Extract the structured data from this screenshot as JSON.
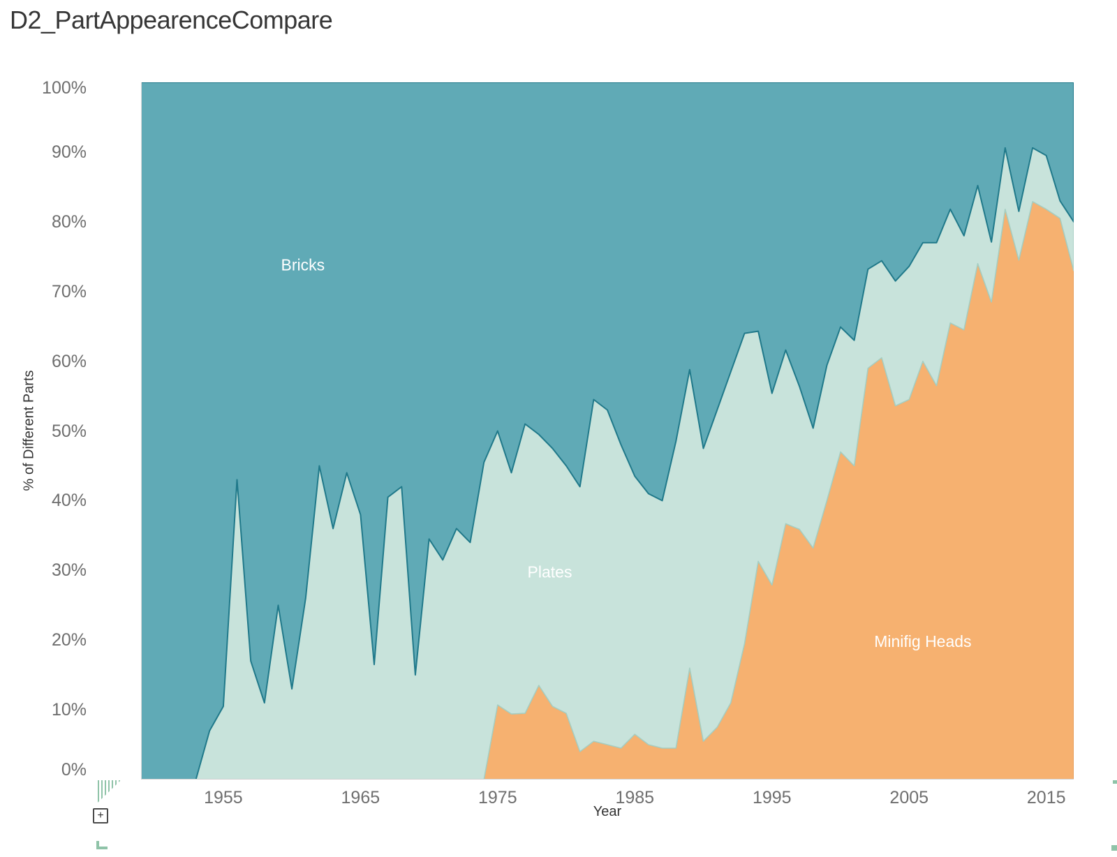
{
  "title": "D2_PartAppearenceCompare",
  "axes": {
    "y_title": "% of Different Parts",
    "x_title": "Year",
    "y_ticks": [
      {
        "v": 0,
        "label": "0%"
      },
      {
        "v": 10,
        "label": "10%"
      },
      {
        "v": 20,
        "label": "20%"
      },
      {
        "v": 30,
        "label": "30%"
      },
      {
        "v": 40,
        "label": "40%"
      },
      {
        "v": 50,
        "label": "50%"
      },
      {
        "v": 60,
        "label": "60%"
      },
      {
        "v": 70,
        "label": "70%"
      },
      {
        "v": 80,
        "label": "80%"
      },
      {
        "v": 90,
        "label": "90%"
      },
      {
        "v": 100,
        "label": "100%"
      }
    ],
    "x_ticks": [
      {
        "v": 1955,
        "label": "1955"
      },
      {
        "v": 1965,
        "label": "1965"
      },
      {
        "v": 1975,
        "label": "1975"
      },
      {
        "v": 1985,
        "label": "1985"
      },
      {
        "v": 1995,
        "label": "1995"
      },
      {
        "v": 2005,
        "label": "2005"
      },
      {
        "v": 2015,
        "label": "2015"
      }
    ]
  },
  "chart_data": {
    "type": "area",
    "stacked": true,
    "percent": true,
    "title": "D2_PartAppearenceCompare",
    "xlabel": "Year",
    "ylabel": "% of Different Parts",
    "xlim": [
      1949,
      2017
    ],
    "ylim": [
      0,
      100
    ],
    "grid": false,
    "legend_position": "none",
    "x": [
      1949,
      1950,
      1951,
      1952,
      1953,
      1954,
      1955,
      1956,
      1957,
      1958,
      1959,
      1960,
      1961,
      1962,
      1963,
      1964,
      1965,
      1966,
      1967,
      1968,
      1969,
      1970,
      1971,
      1972,
      1973,
      1974,
      1975,
      1976,
      1977,
      1978,
      1979,
      1980,
      1981,
      1982,
      1983,
      1984,
      1985,
      1986,
      1987,
      1988,
      1989,
      1990,
      1991,
      1992,
      1993,
      1994,
      1995,
      1996,
      1997,
      1998,
      1999,
      2000,
      2001,
      2002,
      2003,
      2004,
      2005,
      2006,
      2007,
      2008,
      2009,
      2010,
      2011,
      2012,
      2013,
      2014,
      2015,
      2016,
      2017
    ],
    "series": [
      {
        "name": "Minifig Heads",
        "values": [
          0,
          0,
          0,
          0,
          0,
          0,
          0,
          0,
          0,
          0,
          0,
          0,
          0,
          0,
          0,
          0,
          0,
          0,
          0,
          0,
          0,
          0,
          0,
          0,
          0,
          0,
          10.7,
          9.4,
          9.5,
          13.5,
          10.5,
          9.5,
          4,
          5.5,
          5,
          4.5,
          6.5,
          5,
          4.5,
          4.5,
          16,
          5.5,
          7.5,
          11,
          19.5,
          31.3,
          27.9,
          36.7,
          35.9,
          33.2,
          40,
          47,
          45,
          59,
          60.5,
          53.6,
          54.5,
          60,
          56.5,
          65.5,
          64.5,
          74,
          68.5,
          81.8,
          74.5,
          82.9,
          81.8,
          80.5,
          73
        ]
      },
      {
        "name": "Plates",
        "values": [
          0,
          0,
          0,
          0,
          0,
          7,
          10.5,
          43,
          17,
          11,
          25,
          13,
          26,
          45,
          36,
          44,
          38,
          16.5,
          40.5,
          42,
          15,
          34.5,
          31.5,
          36,
          34,
          45.5,
          39.3,
          34.6,
          41.5,
          36,
          37,
          35.5,
          38,
          49,
          48,
          43.5,
          37,
          36,
          35.5,
          44,
          42.8,
          42,
          45.5,
          47.5,
          44.5,
          33,
          27.5,
          24.9,
          20.5,
          17.2,
          19.4,
          17.9,
          18,
          14.2,
          13.9,
          17.9,
          19.1,
          17,
          20.5,
          16.3,
          13.5,
          11.2,
          8.6,
          8.8,
          7,
          7.7,
          7.7,
          2.5,
          7
        ]
      },
      {
        "name": "Bricks",
        "values": [
          100,
          100,
          100,
          100,
          100,
          93,
          89.5,
          57,
          83,
          89,
          75,
          87,
          74,
          55,
          64,
          56,
          62,
          83.5,
          59.5,
          58,
          85,
          65.5,
          68.5,
          64,
          66,
          54.5,
          50,
          56,
          49,
          50.5,
          52.5,
          55,
          58,
          45.5,
          47,
          52,
          56.5,
          59,
          60,
          51.5,
          41.2,
          52.5,
          47,
          41.5,
          36,
          35.7,
          44.6,
          38.4,
          43.6,
          49.6,
          40.6,
          35.1,
          37,
          26.8,
          25.6,
          28.5,
          26.4,
          23,
          23,
          18.2,
          22,
          14.8,
          22.9,
          9.4,
          18.5,
          9.4,
          10.5,
          17,
          20
        ]
      }
    ],
    "annotations": [
      {
        "text": "Bricks",
        "year": 1960.8,
        "value": 73
      },
      {
        "text": "Plates",
        "year": 1978.8,
        "value": 29
      },
      {
        "text": "Minifig Heads",
        "year": 2006,
        "value": 19
      }
    ],
    "colors": {
      "bricks_fill": "#60AAB6",
      "bricks_line": "#20798A",
      "plates_fill": "#C8E3DB",
      "plates_line": "#A6CEC2",
      "minifig_fill": "#F6B170",
      "minifig_line": "#E59A56",
      "axis_line": "#CFCFCF",
      "pane_line": "#D8D8D8",
      "tick_text": "#6E6E6E",
      "label_text": "#FFFFFF"
    }
  },
  "icons": {
    "plus_label": "+",
    "accent_green": "#8FC3A8"
  }
}
